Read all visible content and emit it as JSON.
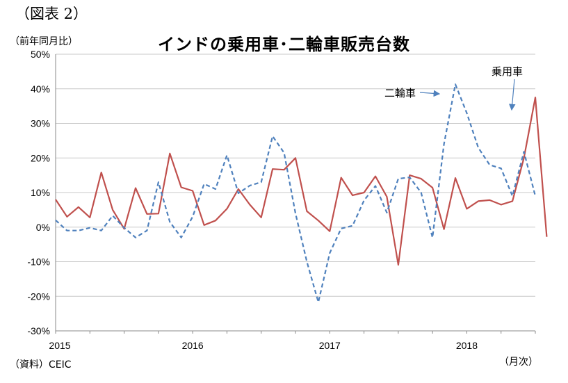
{
  "figure_label": "（図表 2）",
  "chart_data": {
    "type": "line",
    "title": "インドの乗用車･二輪車販売台数",
    "ylabel": "（前年同月比）",
    "xlabel": "（月次）",
    "source": "（資料）CEIC",
    "ylim": [
      -30,
      50
    ],
    "y_ticks": [
      "-30%",
      "-20%",
      "-10%",
      "0%",
      "10%",
      "20%",
      "30%",
      "40%",
      "50%"
    ],
    "y_tick_values": [
      -30,
      -20,
      -10,
      0,
      10,
      20,
      30,
      40,
      50
    ],
    "x_ticks": [
      "2015",
      "2016",
      "2017",
      "2018"
    ],
    "x_tick_index": [
      0,
      12,
      24,
      36
    ],
    "grid": true,
    "series": [
      {
        "name": "乗用車",
        "color": "#c0504d",
        "style": "solid",
        "values": [
          8.0,
          3.0,
          5.8,
          2.8,
          15.8,
          5.0,
          -0.5,
          11.3,
          3.8,
          3.9,
          21.3,
          11.5,
          10.5,
          0.6,
          1.9,
          5.3,
          11.0,
          6.5,
          2.8,
          16.8,
          16.6,
          20.0,
          4.6,
          1.9,
          -1.2,
          14.3,
          9.2,
          10.0,
          14.7,
          8.8,
          -10.9,
          15.0,
          14.0,
          11.4,
          -0.6,
          14.2,
          5.3,
          7.5,
          7.8,
          6.5,
          7.5,
          20.0,
          37.5,
          -2.8
        ]
      },
      {
        "name": "二輪車",
        "color": "#4f81bd",
        "style": "dashed",
        "values": [
          2.0,
          -1.0,
          -1.0,
          -0.2,
          -1.0,
          3.3,
          -0.2,
          -3.0,
          -1.0,
          13.0,
          1.5,
          -3.0,
          3.0,
          12.5,
          11.0,
          20.8,
          9.8,
          12.0,
          13.0,
          26.3,
          21.5,
          4.0,
          -10.0,
          -21.7,
          -7.5,
          -0.4,
          0.4,
          7.7,
          11.9,
          4.2,
          14.0,
          14.4,
          10.0,
          -3.0,
          24.0,
          41.3,
          33.0,
          23.0,
          18.0,
          17.0,
          9.0,
          21.8,
          9.0
        ]
      }
    ],
    "annotations": [
      {
        "text": "二輪車",
        "target_series": "二輪車"
      },
      {
        "text": "乗用車",
        "target_series": "乗用車"
      }
    ]
  }
}
